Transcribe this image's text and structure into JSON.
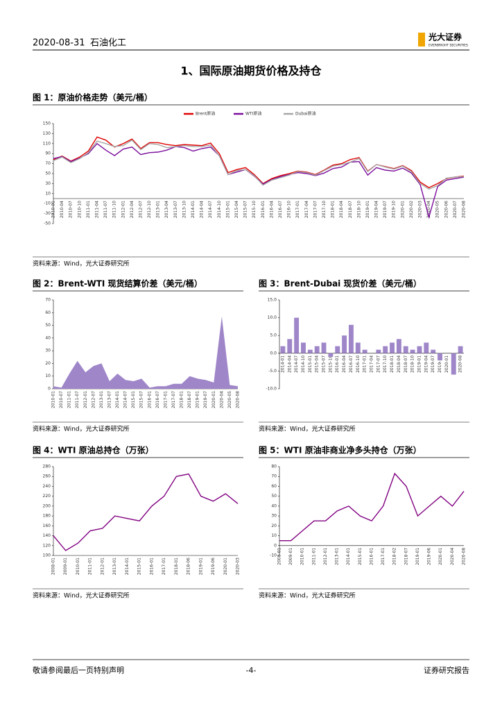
{
  "header": {
    "date": "2020-08-31",
    "sector": "石油化工",
    "logo": "光大证券",
    "logo_en": "EVERBRIGHT SECURITIES"
  },
  "section_title": "1、国际原油期货价格及持仓",
  "chart_data": [
    {
      "type": "line",
      "title": "图 1：原油价格走势（美元/桶）",
      "source": "资料来源：Wind，光大证券研究所",
      "legend": "top",
      "x": [
        "2010-01",
        "2010-04",
        "2010-07",
        "2010-10",
        "2011-01",
        "2011-04",
        "2011-07",
        "2011-10",
        "2012-01",
        "2012-04",
        "2012-07",
        "2012-10",
        "2013-01",
        "2013-04",
        "2013-07",
        "2013-10",
        "2014-01",
        "2014-04",
        "2014-07",
        "2014-10",
        "2015-01",
        "2015-04",
        "2015-07",
        "2015-10",
        "2016-01",
        "2016-04",
        "2016-07",
        "2016-10",
        "2017-01",
        "2017-04",
        "2017-07",
        "2017-10",
        "2018-01",
        "2018-04",
        "2018-07",
        "2018-10",
        "2019-01",
        "2019-04",
        "2019-07",
        "2019-10",
        "2020-01",
        "2020-02",
        "2020-03",
        "2020-04",
        "2020-05",
        "2020-06",
        "2020-07",
        "2020-08"
      ],
      "series": [
        {
          "name": "Brent原油",
          "color": "#e00000",
          "values": [
            78,
            85,
            75,
            83,
            95,
            123,
            117,
            103,
            110,
            119,
            100,
            112,
            112,
            108,
            106,
            108,
            107,
            106,
            111,
            90,
            52,
            58,
            62,
            48,
            30,
            40,
            46,
            50,
            55,
            53,
            48,
            57,
            67,
            70,
            78,
            82,
            55,
            68,
            64,
            60,
            66,
            56,
            33,
            22,
            30,
            40,
            43,
            45
          ]
        },
        {
          "name": "WTI原油",
          "color": "#7b0d9c",
          "values": [
            80,
            84,
            74,
            81,
            90,
            110,
            97,
            86,
            99,
            103,
            88,
            92,
            93,
            97,
            104,
            102,
            95,
            100,
            103,
            86,
            48,
            53,
            58,
            45,
            29,
            38,
            44,
            48,
            52,
            50,
            46,
            51,
            60,
            63,
            73,
            74,
            47,
            62,
            57,
            55,
            61,
            51,
            28,
            -37,
            24,
            37,
            40,
            43
          ]
        },
        {
          "name": "Dubai原油",
          "color": "#a6a6a6",
          "values": [
            76,
            83,
            72,
            80,
            92,
            115,
            110,
            104,
            106,
            117,
            98,
            110,
            108,
            102,
            104,
            106,
            104,
            104,
            107,
            86,
            48,
            56,
            58,
            46,
            27,
            37,
            42,
            47,
            54,
            52,
            47,
            56,
            65,
            68,
            73,
            80,
            54,
            68,
            63,
            59,
            65,
            54,
            30,
            19,
            26,
            41,
            43,
            44
          ]
        }
      ],
      "ylim": [
        -50,
        150
      ],
      "yticks": [
        -50,
        -30,
        -10,
        10,
        30,
        50,
        70,
        90,
        110,
        130,
        150
      ]
    },
    {
      "type": "area",
      "title": "图 2：Brent-WTI 现货结算价差（美元/桶）",
      "source": "资料来源：Wind，光大证券研究所",
      "color": "#9f86c9",
      "x": [
        "2010-01",
        "2010-07",
        "2011-01",
        "2011-07",
        "2012-01",
        "2012-07",
        "2013-01",
        "2013-07",
        "2014-01",
        "2014-07",
        "2015-01",
        "2015-07",
        "2016-01",
        "2016-07",
        "2017-01",
        "2017-07",
        "2018-01",
        "2018-07",
        "2019-01",
        "2019-07",
        "2020-01",
        "2020-04",
        "2020-05",
        "2020-08"
      ],
      "values": [
        2,
        1,
        12,
        22,
        13,
        18,
        20,
        6,
        12,
        7,
        6,
        8,
        1,
        2,
        2,
        4,
        4,
        10,
        8,
        7,
        5,
        57,
        3,
        2
      ],
      "ylim": [
        0,
        70
      ],
      "yticks": [
        0,
        10,
        20,
        30,
        40,
        50,
        60,
        70
      ]
    },
    {
      "type": "bar",
      "title": "图 3：Brent-Dubai 现货价差（美元/桶）",
      "source": "资料来源：Wind，光大证券研究所",
      "color": "#9f86c9",
      "x": [
        "2014-01",
        "2014-04",
        "2014-07",
        "2014-10",
        "2015-01",
        "2015-04",
        "2015-07",
        "2015-10",
        "2016-01",
        "2016-04",
        "2016-07",
        "2016-10",
        "2017-01",
        "2017-04",
        "2017-07",
        "2017-10",
        "2018-01",
        "2018-04",
        "2018-07",
        "2018-10",
        "2019-01",
        "2019-04",
        "2019-07",
        "2019-10",
        "2020-01",
        "2020-04",
        "2020-08"
      ],
      "values": [
        2,
        4,
        10,
        3,
        1,
        2,
        3,
        -1,
        2,
        5,
        8,
        3,
        1,
        0,
        1,
        2,
        3,
        4,
        2,
        1,
        2,
        3,
        1,
        -2,
        0,
        -6,
        2
      ],
      "ylim": [
        -10,
        15
      ],
      "yticks": [
        {
          "value": -10,
          "label": "-10.0"
        },
        {
          "value": -5,
          "label": "-5.0"
        },
        {
          "value": 0,
          "label": "0.0"
        },
        {
          "value": 5,
          "label": "5.0"
        },
        {
          "value": 10,
          "label": "10.0"
        },
        {
          "value": 15,
          "label": "15.0"
        }
      ]
    },
    {
      "type": "line",
      "title": "图 4：WTI 原油总持仓（万张）",
      "source": "资料来源：Wind，光大证券研究所",
      "x": [
        "2008-01",
        "2009-01",
        "2010-01",
        "2011-01",
        "2012-01",
        "2013-01",
        "2014-01",
        "2015-01",
        "2016-01",
        "2017-01",
        "2018-01",
        "2018-06",
        "2019-01",
        "2019-06",
        "2020-01",
        "2020-03"
      ],
      "series": [
        {
          "name": "WTI原油总持仓",
          "color": "#800080",
          "values": [
            140,
            110,
            125,
            150,
            155,
            180,
            175,
            170,
            200,
            220,
            260,
            265,
            220,
            210,
            225,
            205
          ]
        }
      ],
      "ylim": [
        100,
        280
      ],
      "yticks": [
        100,
        120,
        140,
        160,
        180,
        200,
        220,
        240,
        260,
        280
      ]
    },
    {
      "type": "line",
      "title": "图 5：WTI 原油非商业净多头持仓（万张）",
      "source": "资料来源：Wind，光大证券研究所",
      "x": [
        "2008-01",
        "2009-01",
        "2010-01",
        "2011-01",
        "2012-01",
        "2013-01",
        "2014-01",
        "2015-01",
        "2016-01",
        "2017-01",
        "2018-02",
        "2018-07",
        "2019-01",
        "2019-06",
        "2020-01",
        "2020-04",
        "2020-08"
      ],
      "series": [
        {
          "name": "WTI原油非商业净多头持仓",
          "color": "#800080",
          "values": [
            5,
            5,
            15,
            25,
            25,
            35,
            40,
            30,
            25,
            40,
            73,
            60,
            30,
            40,
            50,
            40,
            55
          ]
        }
      ],
      "ylim": [
        -10,
        80
      ],
      "yticks": [
        -10,
        0,
        10,
        20,
        30,
        40,
        50,
        60,
        70,
        80
      ]
    }
  ],
  "footer": {
    "left": "敬请参阅最后一页特别声明",
    "page": "-4-",
    "right": "证券研究报告"
  }
}
